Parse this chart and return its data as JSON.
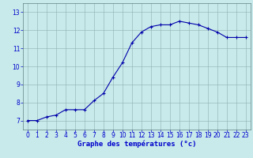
{
  "x": [
    0,
    1,
    2,
    3,
    4,
    5,
    6,
    7,
    8,
    9,
    10,
    11,
    12,
    13,
    14,
    15,
    16,
    17,
    18,
    19,
    20,
    21,
    22,
    23
  ],
  "y": [
    7.0,
    7.0,
    7.2,
    7.3,
    7.6,
    7.6,
    7.6,
    8.1,
    8.5,
    9.4,
    10.2,
    11.3,
    11.9,
    12.2,
    12.3,
    12.3,
    12.5,
    12.4,
    12.3,
    12.1,
    11.9,
    11.6,
    11.6,
    11.6
  ],
  "line_color": "#0000aa",
  "marker": "+",
  "marker_size": 3,
  "line_width": 0.8,
  "bg_color": "#c8eaea",
  "plot_bg_color": "#c8eaea",
  "grid_color": "#90b0b0",
  "xlabel": "Graphe des températures (°c)",
  "xlabel_color": "#0000cc",
  "xlabel_fontsize": 6.5,
  "tick_color": "#0000cc",
  "tick_fontsize": 5.5,
  "ylim": [
    6.5,
    13.5
  ],
  "yticks": [
    7,
    8,
    9,
    10,
    11,
    12,
    13
  ],
  "xlim": [
    -0.5,
    23.5
  ],
  "xticks": [
    0,
    1,
    2,
    3,
    4,
    5,
    6,
    7,
    8,
    9,
    10,
    11,
    12,
    13,
    14,
    15,
    16,
    17,
    18,
    19,
    20,
    21,
    22,
    23
  ],
  "bottom_bar_color": "#0000aa",
  "spine_color": "#608080"
}
